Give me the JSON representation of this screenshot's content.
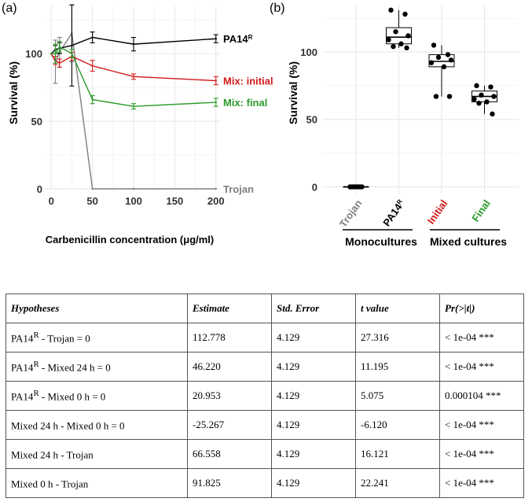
{
  "panel_a": {
    "letter": "(a)",
    "ylabel": "Survival (%)",
    "xlabel": "Carbenicillin concentration (μg/ml)"
  },
  "panel_b": {
    "letter": "(b)",
    "ylabel": "Survival (%)",
    "group_monocultures": "Monocultures",
    "group_mixed": "Mixed cultures"
  },
  "colors": {
    "pa14r": "#000000",
    "initial": "#d11a1a",
    "final": "#2a9b2a",
    "trojan": "#7f7f7f"
  },
  "chart_data": [
    {
      "type": "line",
      "title": "(a)",
      "xlabel": "Carbenicillin concentration (μg/ml)",
      "ylabel": "Survival (%)",
      "xlim": [
        -5,
        205
      ],
      "ylim": [
        0,
        135
      ],
      "xticks": [
        0,
        50,
        100,
        150,
        200
      ],
      "yticks": [
        0,
        50,
        100
      ],
      "grid": true,
      "series": [
        {
          "name": "Trojan",
          "label": "Trojan",
          "color": "#7f7f7f",
          "x": [
            0,
            5,
            10,
            25,
            50,
            100,
            200
          ],
          "y": [
            100,
            94,
            101,
            115,
            0,
            0,
            0
          ],
          "err": [
            0,
            16,
            11,
            21,
            0,
            0,
            0
          ]
        },
        {
          "name": "PA14R",
          "label": "PA14",
          "sup": "R",
          "color": "#000000",
          "x": [
            0,
            5,
            10,
            25,
            50,
            100,
            200
          ],
          "y": [
            100,
            103,
            104,
            106,
            112,
            107,
            111
          ],
          "err": [
            0,
            3,
            4,
            30,
            4,
            5,
            3
          ]
        },
        {
          "name": "Mix: initial",
          "label": "Mix: initial",
          "color": "#d11a1a",
          "x": [
            0,
            5,
            10,
            25,
            50,
            100,
            200
          ],
          "y": [
            100,
            95,
            93,
            98,
            91,
            83,
            80
          ],
          "err": [
            0,
            3,
            3,
            3,
            4,
            2,
            3
          ]
        },
        {
          "name": "Mix: final",
          "label": "Mix: final",
          "color": "#2a9b2a",
          "x": [
            0,
            5,
            10,
            25,
            50,
            100,
            200
          ],
          "y": [
            100,
            100,
            105,
            100,
            66,
            61,
            64
          ],
          "err": [
            0,
            7,
            4,
            3,
            3,
            2,
            3
          ]
        }
      ]
    },
    {
      "type": "box",
      "title": "(b)",
      "ylabel": "Survival (%)",
      "ylim": [
        -5,
        135
      ],
      "yticks": [
        0,
        50,
        100
      ],
      "grid": true,
      "categories": [
        {
          "label": "Trojan",
          "sup": "",
          "color": "#7f7f7f",
          "bold": true,
          "group": "Monocultures",
          "q1": 0,
          "median": 0,
          "q3": 0,
          "whisker_low": 0,
          "whisker_high": 0,
          "points": [
            0,
            0,
            0,
            0,
            0,
            0,
            0
          ]
        },
        {
          "label": "PA14",
          "sup": "R",
          "color": "#000000",
          "bold": true,
          "group": "Monocultures",
          "q1": 106,
          "median": 111,
          "q3": 118,
          "whisker_low": 103,
          "whisker_high": 131,
          "points": [
            131,
            128,
            115,
            112,
            109,
            106,
            104,
            103
          ]
        },
        {
          "label": "Initial",
          "sup": "",
          "color": "#d11a1a",
          "bold": true,
          "group": "Mixed cultures",
          "q1": 89,
          "median": 93,
          "q3": 98,
          "whisker_low": 67,
          "whisker_high": 105,
          "points": [
            105,
            98,
            96,
            94,
            92,
            89,
            67,
            67
          ]
        },
        {
          "label": "Final",
          "sup": "",
          "color": "#2a9b2a",
          "bold": true,
          "group": "Mixed cultures",
          "q1": 63,
          "median": 67,
          "q3": 71,
          "whisker_low": 54,
          "whisker_high": 75,
          "points": [
            75,
            74,
            68,
            67,
            65,
            63,
            62,
            54
          ]
        }
      ]
    }
  ],
  "table": {
    "headers": [
      "Hypotheses",
      "Estimate",
      "Std. Error",
      "t value",
      "Pr(>|t|)"
    ],
    "rows": [
      {
        "hyp": "PA14",
        "sup": "R",
        "rest": " - Trojan = 0",
        "estimate": "112.778",
        "se": "4.129",
        "t": "27.316",
        "p": "< 1e-04 ***"
      },
      {
        "hyp": "PA14",
        "sup": "R",
        "rest": " - Mixed 24 h = 0",
        "estimate": "46.220",
        "se": "4.129",
        "t": "11.195",
        "p": "< 1e-04 ***"
      },
      {
        "hyp": "PA14",
        "sup": "R",
        "rest": " - Mixed 0 h = 0",
        "estimate": "20.953",
        "se": "4.129",
        "t": "5.075",
        "p": "0.000104 ***"
      },
      {
        "hyp": "Mixed 24 h - Mixed 0 h = 0",
        "sup": "",
        "rest": "",
        "estimate": "-25.267",
        "se": "4.129",
        "t": "-6.120",
        "p": "< 1e-04 ***"
      },
      {
        "hyp": "Mixed 24 h - Trojan",
        "sup": "",
        "rest": "",
        "estimate": "66.558",
        "se": "4.129",
        "t": "16.121",
        "p": "< 1e-04 ***"
      },
      {
        "hyp": "Mixed 0 h - Trojan",
        "sup": "",
        "rest": "",
        "estimate": "91.825",
        "se": "4.129",
        "t": "22.241",
        "p": "< 1e-04 ***"
      }
    ]
  }
}
